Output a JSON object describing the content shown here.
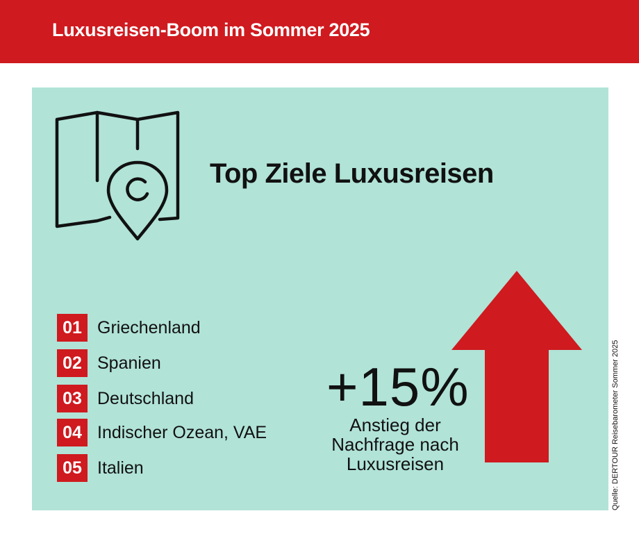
{
  "header": {
    "title": "Luxusreisen-Boom im Sommer 2025"
  },
  "panel": {
    "title": "Top Ziele Luxusreisen",
    "icon": "map-pin-icon",
    "ranking": [
      {
        "rank": "01",
        "label": "Griechenland"
      },
      {
        "rank": "02",
        "label": "Spanien"
      },
      {
        "rank": "03",
        "label": "Deutschland"
      },
      {
        "rank": "04",
        "label": "Indischer Ozean, VAE"
      },
      {
        "rank": "05",
        "label": "Italien"
      }
    ],
    "stat": {
      "value": "+15%",
      "caption_lines": [
        "Anstieg der",
        "Nachfrage nach",
        "Luxusreisen"
      ],
      "icon": "arrow-up-icon"
    }
  },
  "source": "Quelle: DERTOUR Reisebarometer Sommer 2025",
  "colors": {
    "brand_red": "#cf1a1f",
    "panel_bg": "#b1e3d7",
    "text": "#111111"
  }
}
